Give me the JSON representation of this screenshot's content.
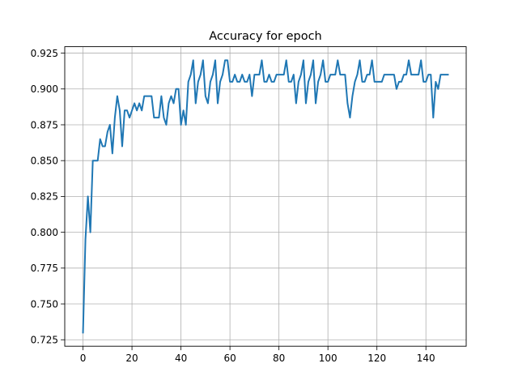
{
  "chart_data": {
    "type": "line",
    "title": "Accuracy for epoch",
    "xlabel": "",
    "ylabel": "",
    "xlim": [
      -7.45,
      156.45
    ],
    "ylim": [
      0.7205,
      0.9295
    ],
    "grid": true,
    "x_ticks": [
      0,
      20,
      40,
      60,
      80,
      100,
      120,
      140
    ],
    "y_ticks": [
      0.725,
      0.75,
      0.775,
      0.8,
      0.825,
      0.85,
      0.875,
      0.9,
      0.925
    ],
    "x_tick_labels": [
      "0",
      "20",
      "40",
      "60",
      "80",
      "100",
      "120",
      "140"
    ],
    "y_tick_labels": [
      "0.725",
      "0.750",
      "0.775",
      "0.800",
      "0.825",
      "0.850",
      "0.875",
      "0.900",
      "0.925"
    ],
    "series": [
      {
        "color": "#1f77b4",
        "x": [
          0,
          1,
          2,
          3,
          4,
          5,
          6,
          7,
          8,
          9,
          10,
          11,
          12,
          13,
          14,
          15,
          16,
          17,
          18,
          19,
          20,
          21,
          22,
          23,
          24,
          25,
          26,
          27,
          28,
          29,
          30,
          31,
          32,
          33,
          34,
          35,
          36,
          37,
          38,
          39,
          40,
          41,
          42,
          43,
          44,
          45,
          46,
          47,
          48,
          49,
          50,
          51,
          52,
          53,
          54,
          55,
          56,
          57,
          58,
          59,
          60,
          61,
          62,
          63,
          64,
          65,
          66,
          67,
          68,
          69,
          70,
          71,
          72,
          73,
          74,
          75,
          76,
          77,
          78,
          79,
          80,
          81,
          82,
          83,
          84,
          85,
          86,
          87,
          88,
          89,
          90,
          91,
          92,
          93,
          94,
          95,
          96,
          97,
          98,
          99,
          100,
          101,
          102,
          103,
          104,
          105,
          106,
          107,
          108,
          109,
          110,
          111,
          112,
          113,
          114,
          115,
          116,
          117,
          118,
          119,
          120,
          121,
          122,
          123,
          124,
          125,
          126,
          127,
          128,
          129,
          130,
          131,
          132,
          133,
          134,
          135,
          136,
          137,
          138,
          139,
          140,
          141,
          142,
          143,
          144,
          145,
          146,
          147,
          148,
          149
        ],
        "y": [
          0.73,
          0.795,
          0.825,
          0.8,
          0.85,
          0.85,
          0.85,
          0.865,
          0.86,
          0.86,
          0.87,
          0.875,
          0.855,
          0.88,
          0.895,
          0.885,
          0.86,
          0.885,
          0.885,
          0.88,
          0.885,
          0.89,
          0.885,
          0.89,
          0.885,
          0.895,
          0.895,
          0.895,
          0.895,
          0.88,
          0.88,
          0.88,
          0.895,
          0.88,
          0.875,
          0.89,
          0.895,
          0.89,
          0.9,
          0.9,
          0.875,
          0.885,
          0.875,
          0.905,
          0.91,
          0.92,
          0.89,
          0.905,
          0.91,
          0.92,
          0.895,
          0.89,
          0.905,
          0.91,
          0.92,
          0.89,
          0.905,
          0.91,
          0.92,
          0.92,
          0.905,
          0.905,
          0.91,
          0.905,
          0.905,
          0.91,
          0.905,
          0.905,
          0.91,
          0.895,
          0.91,
          0.91,
          0.91,
          0.92,
          0.905,
          0.905,
          0.91,
          0.905,
          0.905,
          0.91,
          0.91,
          0.91,
          0.91,
          0.92,
          0.905,
          0.905,
          0.91,
          0.89,
          0.905,
          0.91,
          0.92,
          0.89,
          0.905,
          0.91,
          0.92,
          0.89,
          0.905,
          0.91,
          0.92,
          0.905,
          0.905,
          0.91,
          0.91,
          0.91,
          0.92,
          0.91,
          0.91,
          0.91,
          0.89,
          0.88,
          0.895,
          0.905,
          0.91,
          0.92,
          0.905,
          0.905,
          0.91,
          0.91,
          0.92,
          0.905,
          0.905,
          0.905,
          0.905,
          0.91,
          0.91,
          0.91,
          0.91,
          0.91,
          0.9,
          0.905,
          0.905,
          0.91,
          0.91,
          0.92,
          0.91,
          0.91,
          0.91,
          0.91,
          0.92,
          0.905,
          0.905,
          0.91,
          0.91,
          0.88,
          0.905,
          0.9,
          0.91,
          0.91,
          0.91,
          0.91
        ]
      }
    ]
  }
}
